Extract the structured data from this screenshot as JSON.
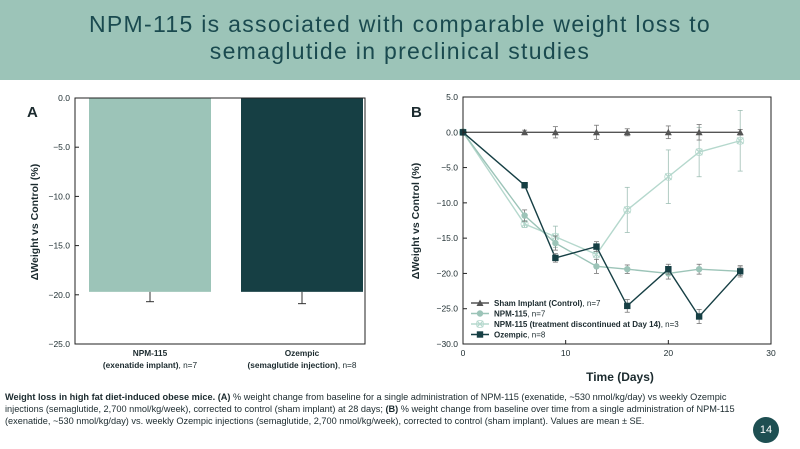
{
  "slide": {
    "title": "NPM-115 is associated with comparable weight loss to semaglutide in preclinical studies",
    "page_number": "14",
    "caption": {
      "lead": "Weight loss in high fat diet-induced obese mice.",
      "a_tag": "(A)",
      "a_text": "% weight change from baseline for a single administration of NPM-115 (exenatide, ~530 nmol/kg/day) vs weekly Ozempic injections (semaglutide, 2,700 nmol/kg/week), corrected to control (sham implant) at 28 days;",
      "b_tag": "(B)",
      "b_text": "% weight change from baseline over time from a single administration of NPM-115 (exenatide, ~530 nmol/kg/day) vs. weekly Ozempic injections (semaglutide, 2,700 nmol/kg/week), corrected to control (sham implant). Values are mean ± SE."
    }
  },
  "colors": {
    "title_band": "#9cc4b8",
    "title_text": "#1a4a4f",
    "npm115": "#9cc4b8",
    "ozempic": "#163f44",
    "sham": "#555555",
    "discontinued": "#b5d8cd"
  },
  "chart_data": [
    {
      "type": "bar",
      "panel": "A",
      "ylabel": "ΔWeight vs Control (%)",
      "ylim": [
        -25.0,
        0.0
      ],
      "yticks": [
        "0.0",
        "−5.0",
        "−10.0",
        "−15.0",
        "−20.0",
        "−25.0"
      ],
      "ytick_values": [
        0,
        -5,
        -10,
        -15,
        -20,
        -25
      ],
      "categories": [
        {
          "name": "NPM-115",
          "detail": "(exenatide implant)",
          "n": ", n=7",
          "value": -19.7,
          "error": 1.0,
          "color": "#9cc4b8"
        },
        {
          "name": "Ozempic",
          "detail": "(semaglutide injection)",
          "n": ", n=8",
          "value": -19.7,
          "error": 1.2,
          "color": "#163f44"
        }
      ]
    },
    {
      "type": "line",
      "panel": "B",
      "xlabel": "Time (Days)",
      "ylabel": "ΔWeight vs Control (%)",
      "xlim": [
        0,
        30
      ],
      "ylim": [
        -30.0,
        5.0
      ],
      "xticks": [
        "0",
        "10",
        "20",
        "30"
      ],
      "xtick_values": [
        0,
        10,
        20,
        30
      ],
      "yticks": [
        "5.0",
        "0.0",
        "−5.0",
        "−10.0",
        "−15.0",
        "−20.0",
        "−25.0",
        "−30.0"
      ],
      "ytick_values": [
        5,
        0,
        -5,
        -10,
        -15,
        -20,
        -25,
        -30
      ],
      "series": [
        {
          "name": "Sham Implant (Control)",
          "n": ", n=7",
          "marker": "triangle",
          "color": "#555555",
          "x": [
            0,
            6,
            9,
            13,
            16,
            20,
            23,
            27
          ],
          "y": [
            0,
            0,
            0,
            0,
            0,
            0,
            0,
            0
          ],
          "err": [
            0,
            0.3,
            0.8,
            1.0,
            0.5,
            0.9,
            1.1,
            0.4
          ]
        },
        {
          "name": "NPM-115",
          "n": ", n=7",
          "marker": "circle",
          "color": "#9cc4b8",
          "x": [
            0,
            6,
            9,
            13,
            16,
            20,
            23,
            27
          ],
          "y": [
            0,
            -11.8,
            -15.7,
            -19.0,
            -19.4,
            -20.0,
            -19.4,
            -19.7
          ],
          "err": [
            0,
            0.8,
            1.0,
            1.0,
            0.6,
            0.8,
            0.7,
            0.6
          ]
        },
        {
          "name": "NPM-115 (treatment discontinued at Day 14)",
          "n": ", n=3",
          "marker": "x",
          "color": "#b5d8cd",
          "x": [
            0,
            6,
            9,
            13,
            16,
            20,
            23,
            27
          ],
          "y": [
            0,
            -13.0,
            -14.8,
            -17.3,
            -11.0,
            -6.3,
            -2.8,
            -1.2
          ],
          "err": [
            0,
            0.5,
            1.5,
            1.5,
            3.2,
            3.8,
            3.5,
            4.3
          ]
        },
        {
          "name": "Ozempic",
          "n": ", n=8",
          "marker": "square",
          "color": "#163f44",
          "x": [
            0,
            6,
            9,
            13,
            16,
            20,
            23,
            27
          ],
          "y": [
            0,
            -7.5,
            -17.8,
            -16.2,
            -24.6,
            -19.4,
            -26.1,
            -19.7
          ],
          "err": [
            0,
            0.4,
            0.6,
            0.7,
            0.9,
            0.7,
            1.0,
            0.8
          ]
        }
      ]
    }
  ]
}
